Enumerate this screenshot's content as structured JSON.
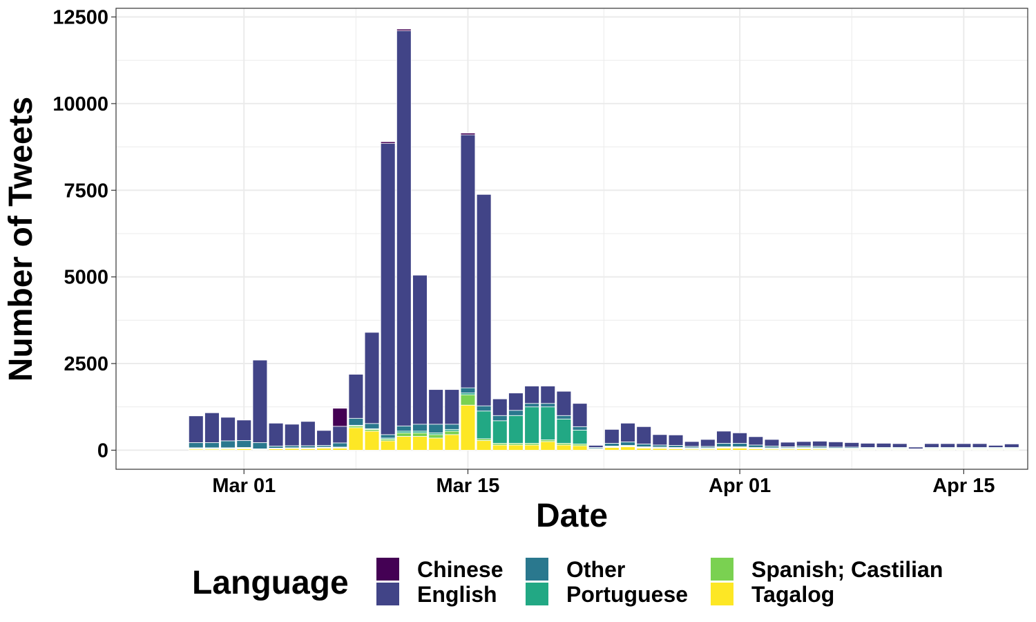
{
  "chart_data": {
    "type": "bar",
    "stacked": true,
    "xlabel": "Date",
    "ylabel": "Number of Tweets",
    "ylim": [
      -550,
      12750
    ],
    "xlim": [
      "2020-02-22",
      "2020-04-19"
    ],
    "y_ticks": [
      0,
      2500,
      5000,
      7500,
      10000,
      12500
    ],
    "y_tick_labels": [
      "0",
      "2500",
      "5000",
      "7500",
      "10000",
      "12500"
    ],
    "x_ticks": [
      {
        "date": "2020-03-01",
        "label": "Mar 01"
      },
      {
        "date": "2020-03-15",
        "label": "Mar 15"
      },
      {
        "date": "2020-04-01",
        "label": "Apr 01"
      },
      {
        "date": "2020-04-15",
        "label": "Apr 15"
      }
    ],
    "grid": true,
    "legend": {
      "title": "Language",
      "position": "bottom",
      "entries": [
        {
          "name": "Chinese",
          "color": "#440154"
        },
        {
          "name": "English",
          "color": "#414487"
        },
        {
          "name": "Other",
          "color": "#2A788E"
        },
        {
          "name": "Portuguese",
          "color": "#22A884"
        },
        {
          "name": "Spanish; Castilian",
          "color": "#7AD151"
        },
        {
          "name": "Tagalog",
          "color": "#FDE725"
        }
      ]
    },
    "stack_order": [
      "Tagalog",
      "Spanish; Castilian",
      "Portuguese",
      "Other",
      "English",
      "Chinese"
    ],
    "dates": [
      "2020-02-27",
      "2020-02-28",
      "2020-02-29",
      "2020-03-01",
      "2020-03-02",
      "2020-03-03",
      "2020-03-04",
      "2020-03-05",
      "2020-03-06",
      "2020-03-07",
      "2020-03-08",
      "2020-03-09",
      "2020-03-10",
      "2020-03-11",
      "2020-03-12",
      "2020-03-13",
      "2020-03-14",
      "2020-03-15",
      "2020-03-16",
      "2020-03-17",
      "2020-03-18",
      "2020-03-19",
      "2020-03-20",
      "2020-03-21",
      "2020-03-22",
      "2020-03-23",
      "2020-03-24",
      "2020-03-25",
      "2020-03-26",
      "2020-03-27",
      "2020-03-28",
      "2020-03-29",
      "2020-03-30",
      "2020-03-31",
      "2020-04-01",
      "2020-04-02",
      "2020-04-03",
      "2020-04-04",
      "2020-04-05",
      "2020-04-06",
      "2020-04-07",
      "2020-04-08",
      "2020-04-09",
      "2020-04-10",
      "2020-04-11",
      "2020-04-12",
      "2020-04-13",
      "2020-04-14",
      "2020-04-15",
      "2020-04-16",
      "2020-04-17",
      "2020-04-18"
    ],
    "series": [
      {
        "name": "Tagalog",
        "values": [
          30,
          30,
          30,
          40,
          20,
          40,
          50,
          40,
          60,
          60,
          650,
          550,
          270,
          400,
          400,
          350,
          450,
          1300,
          280,
          150,
          150,
          150,
          250,
          150,
          130,
          20,
          80,
          100,
          60,
          50,
          40,
          30,
          30,
          60,
          60,
          40,
          30,
          30,
          40,
          30,
          20,
          20,
          20,
          20,
          20,
          10,
          20,
          20,
          20,
          20,
          20,
          20
        ]
      },
      {
        "name": "Spanish; Castilian",
        "values": [
          20,
          20,
          20,
          20,
          10,
          10,
          10,
          20,
          20,
          20,
          50,
          50,
          50,
          100,
          100,
          100,
          100,
          300,
          50,
          50,
          50,
          50,
          50,
          50,
          50,
          10,
          20,
          20,
          20,
          20,
          20,
          20,
          20,
          20,
          20,
          20,
          20,
          20,
          20,
          20,
          20,
          20,
          20,
          20,
          20,
          10,
          20,
          20,
          20,
          20,
          20,
          20
        ]
      },
      {
        "name": "Portuguese",
        "values": [
          20,
          20,
          20,
          20,
          10,
          10,
          10,
          10,
          10,
          10,
          20,
          20,
          30,
          50,
          50,
          50,
          50,
          50,
          800,
          650,
          800,
          1050,
          950,
          700,
          400,
          20,
          20,
          20,
          20,
          20,
          20,
          20,
          20,
          20,
          20,
          20,
          20,
          20,
          20,
          20,
          20,
          20,
          20,
          20,
          20,
          10,
          20,
          20,
          20,
          20,
          20,
          20
        ]
      },
      {
        "name": "Other",
        "values": [
          150,
          150,
          200,
          200,
          180,
          60,
          60,
          60,
          50,
          120,
          200,
          150,
          100,
          150,
          200,
          250,
          150,
          150,
          150,
          150,
          150,
          100,
          100,
          100,
          100,
          30,
          80,
          100,
          80,
          60,
          60,
          40,
          40,
          100,
          100,
          70,
          50,
          30,
          40,
          40,
          30,
          30,
          20,
          20,
          20,
          10,
          20,
          20,
          20,
          20,
          20,
          20
        ]
      },
      {
        "name": "English",
        "values": [
          770,
          860,
          680,
          590,
          2380,
          660,
          620,
          700,
          430,
          480,
          1270,
          2630,
          8400,
          11400,
          4300,
          1000,
          1000,
          7300,
          6100,
          480,
          500,
          500,
          500,
          700,
          670,
          60,
          400,
          540,
          500,
          300,
          300,
          140,
          200,
          350,
          300,
          240,
          190,
          130,
          130,
          150,
          150,
          130,
          120,
          120,
          110,
          50,
          110,
          110,
          110,
          110,
          60,
          100
        ]
      },
      {
        "name": "Chinese",
        "values": [
          0,
          0,
          0,
          0,
          0,
          0,
          0,
          0,
          0,
          520,
          0,
          0,
          50,
          50,
          0,
          0,
          0,
          50,
          0,
          0,
          0,
          0,
          0,
          0,
          0,
          0,
          0,
          0,
          0,
          0,
          0,
          0,
          0,
          0,
          0,
          0,
          0,
          0,
          0,
          0,
          0,
          0,
          0,
          0,
          0,
          0,
          0,
          0,
          0,
          0,
          0,
          0
        ]
      }
    ]
  }
}
